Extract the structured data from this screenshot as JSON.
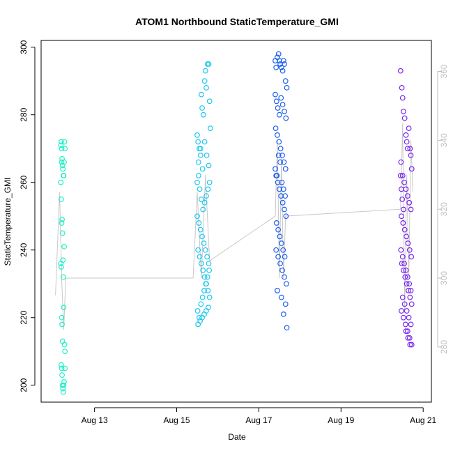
{
  "chart_data": {
    "type": "scatter",
    "title": "ATOM1 Northbound StaticTemperature_GMI",
    "xlabel": "Date",
    "ylabel": "StaticTemperature_GMI",
    "x_ticks": [
      "Aug 13",
      "Aug 15",
      "Aug 17",
      "Aug 19",
      "Aug 21"
    ],
    "x_tick_days": [
      13,
      15,
      17,
      19,
      21
    ],
    "xlim_days": [
      11.7,
      21.2
    ],
    "ylim": [
      195,
      302
    ],
    "y_ticks": [
      200,
      220,
      240,
      260,
      280,
      300
    ],
    "y2lim": [
      264,
      369
    ],
    "y2_ticks": [
      280,
      300,
      320,
      340,
      360
    ],
    "series": [
      {
        "color": "#22f0c8",
        "x": [
          12.18,
          12.19,
          12.2,
          12.21,
          12.2,
          12.22,
          12.23,
          12.18,
          12.19,
          12.24,
          12.25,
          12.26,
          12.27,
          12.28,
          12.2,
          12.21,
          12.22,
          12.26,
          12.18,
          12.19,
          12.23,
          12.24,
          12.25,
          12.2,
          12.21,
          12.22,
          12.27,
          12.28,
          12.19,
          12.2,
          12.21,
          12.22,
          12.23,
          12.24,
          12.25,
          12.26,
          12.28
        ],
        "y": [
          271,
          272,
          270,
          267,
          266,
          265,
          264,
          260,
          255,
          262,
          262,
          266,
          272,
          270,
          248,
          249,
          245,
          241,
          236,
          235,
          237,
          232,
          223,
          220,
          218,
          213,
          212,
          210,
          206,
          205,
          203,
          200,
          199,
          198,
          200,
          201,
          205
        ]
      },
      {
        "color": "#1ec8f0",
        "x": [
          15.5,
          15.52,
          15.55,
          15.58,
          15.6,
          15.62,
          15.65,
          15.68,
          15.7,
          15.72,
          15.75,
          15.78,
          15.8,
          15.82,
          15.5,
          15.53,
          15.56,
          15.6,
          15.64,
          15.68,
          15.72,
          15.76,
          15.8,
          15.5,
          15.54,
          15.58,
          15.62,
          15.66,
          15.7,
          15.74,
          15.78,
          15.52,
          15.56,
          15.6,
          15.64,
          15.68,
          15.72,
          15.76,
          15.8,
          15.51,
          15.55,
          15.59,
          15.63,
          15.67,
          15.71,
          15.75,
          15.79,
          15.52,
          15.57,
          15.62,
          15.67,
          15.72,
          15.77,
          15.53,
          15.58,
          15.63,
          15.68,
          15.73,
          15.78
        ],
        "y": [
          274,
          272,
          270,
          268,
          286,
          282,
          280,
          290,
          293,
          288,
          295,
          295,
          284,
          276,
          260,
          262,
          258,
          255,
          252,
          254,
          256,
          258,
          260,
          250,
          248,
          246,
          244,
          242,
          240,
          238,
          236,
          240,
          238,
          236,
          234,
          232,
          230,
          228,
          226,
          222,
          220,
          224,
          226,
          228,
          230,
          232,
          234,
          218,
          219,
          220,
          221,
          222,
          223,
          266,
          270,
          264,
          272,
          268,
          265
        ]
      },
      {
        "color": "#1f60f0",
        "x": [
          17.4,
          17.42,
          17.45,
          17.48,
          17.5,
          17.52,
          17.55,
          17.58,
          17.6,
          17.62,
          17.65,
          17.68,
          17.4,
          17.43,
          17.46,
          17.5,
          17.54,
          17.58,
          17.62,
          17.66,
          17.41,
          17.45,
          17.49,
          17.53,
          17.57,
          17.61,
          17.65,
          17.42,
          17.46,
          17.5,
          17.54,
          17.58,
          17.62,
          17.66,
          17.43,
          17.47,
          17.51,
          17.55,
          17.59,
          17.63,
          17.4,
          17.44,
          17.48,
          17.52,
          17.56,
          17.6,
          17.64,
          17.42,
          17.47,
          17.52,
          17.57,
          17.62,
          17.67,
          17.45,
          17.55,
          17.65,
          17.6,
          17.68
        ],
        "y": [
          296,
          294,
          297,
          298,
          296,
          295,
          294,
          293,
          296,
          295,
          290,
          288,
          286,
          284,
          282,
          280,
          285,
          283,
          281,
          279,
          276,
          274,
          272,
          270,
          268,
          266,
          264,
          262,
          260,
          258,
          256,
          254,
          252,
          250,
          248,
          246,
          244,
          242,
          240,
          238,
          264,
          262,
          268,
          266,
          260,
          258,
          256,
          240,
          238,
          236,
          234,
          232,
          230,
          228,
          226,
          224,
          221,
          217
        ]
      },
      {
        "color": "#7a28f0",
        "x": [
          20.45,
          20.48,
          20.5,
          20.52,
          20.55,
          20.58,
          20.6,
          20.62,
          20.65,
          20.68,
          20.7,
          20.72,
          20.46,
          20.5,
          20.54,
          20.58,
          20.62,
          20.66,
          20.7,
          20.47,
          20.51,
          20.55,
          20.59,
          20.63,
          20.67,
          20.71,
          20.48,
          20.52,
          20.56,
          20.6,
          20.64,
          20.68,
          20.72,
          20.46,
          20.5,
          20.54,
          20.58,
          20.62,
          20.66,
          20.7,
          20.47,
          20.52,
          20.57,
          20.62,
          20.67,
          20.72,
          20.5,
          20.55,
          20.6,
          20.65,
          20.7,
          20.58,
          20.63,
          20.68,
          20.45,
          20.47,
          20.49,
          20.52
        ],
        "y": [
          293,
          288,
          285,
          281,
          279,
          274,
          272,
          270,
          276,
          270,
          268,
          264,
          266,
          262,
          260,
          258,
          256,
          254,
          252,
          250,
          248,
          246,
          244,
          242,
          240,
          238,
          236,
          234,
          232,
          230,
          228,
          226,
          224,
          240,
          238,
          236,
          234,
          232,
          230,
          228,
          222,
          220,
          218,
          216,
          214,
          212,
          226,
          224,
          222,
          220,
          218,
          216,
          214,
          212,
          262,
          258,
          255,
          252
        ]
      }
    ],
    "line_y2_points": [
      {
        "x": 12.05,
        "y2": 295
      },
      {
        "x": 12.1,
        "y2": 310
      },
      {
        "x": 12.15,
        "y2": 325
      },
      {
        "x": 12.2,
        "y2": 300
      },
      {
        "x": 12.25,
        "y2": 285
      },
      {
        "x": 12.3,
        "y2": 300
      },
      {
        "x": 15.4,
        "y2": 300
      },
      {
        "x": 15.5,
        "y2": 325
      },
      {
        "x": 15.6,
        "y2": 300
      },
      {
        "x": 15.7,
        "y2": 330
      },
      {
        "x": 15.8,
        "y2": 305
      },
      {
        "x": 17.4,
        "y2": 318
      },
      {
        "x": 17.45,
        "y2": 340
      },
      {
        "x": 17.5,
        "y2": 300
      },
      {
        "x": 17.55,
        "y2": 335
      },
      {
        "x": 17.6,
        "y2": 300
      },
      {
        "x": 17.65,
        "y2": 318
      },
      {
        "x": 20.45,
        "y2": 320
      },
      {
        "x": 20.5,
        "y2": 345
      },
      {
        "x": 20.55,
        "y2": 290
      },
      {
        "x": 20.6,
        "y2": 330
      },
      {
        "x": 20.65,
        "y2": 300
      },
      {
        "x": 20.7,
        "y2": 340
      },
      {
        "x": 20.75,
        "y2": 325
      }
    ]
  }
}
